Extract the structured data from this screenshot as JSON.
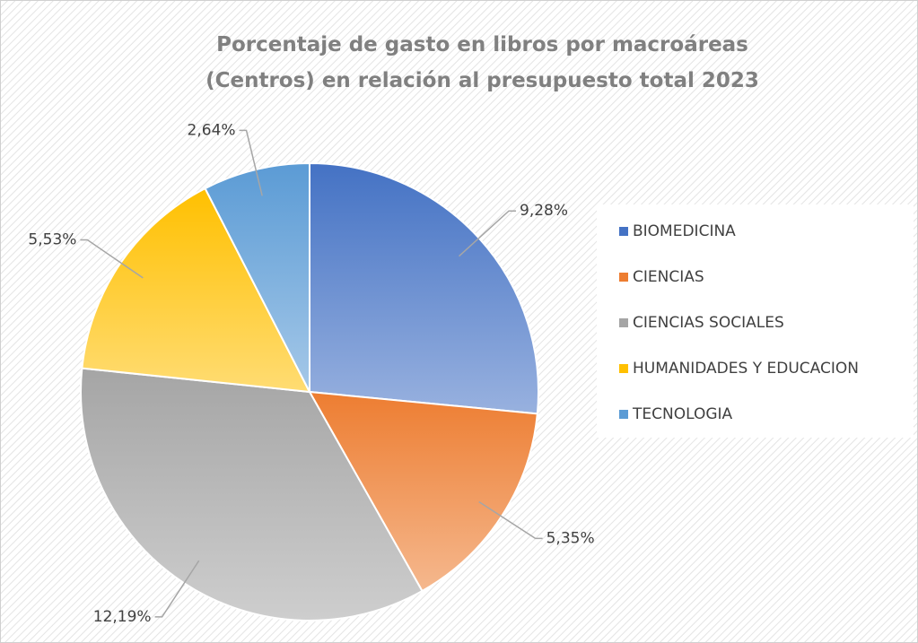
{
  "chart_data": {
    "type": "pie",
    "title": "Porcentaje de gasto en libros por macroáreas (Centros) en relación al presupuesto total 2023",
    "categories": [
      "BIOMEDICINA",
      "CIENCIAS",
      "CIENCIAS SOCIALES",
      "HUMANIDADES Y EDUCACION",
      "TECNOLOGIA"
    ],
    "values": [
      9.28,
      5.35,
      12.19,
      5.53,
      2.64
    ],
    "value_labels": [
      "9,28%",
      "5,35%",
      "12,19%",
      "5,53%",
      "2,64%"
    ],
    "colors": [
      "#4472c4",
      "#ed7d31",
      "#a5a5a5",
      "#ffc000",
      "#5b9bd5"
    ],
    "legend": "right"
  }
}
